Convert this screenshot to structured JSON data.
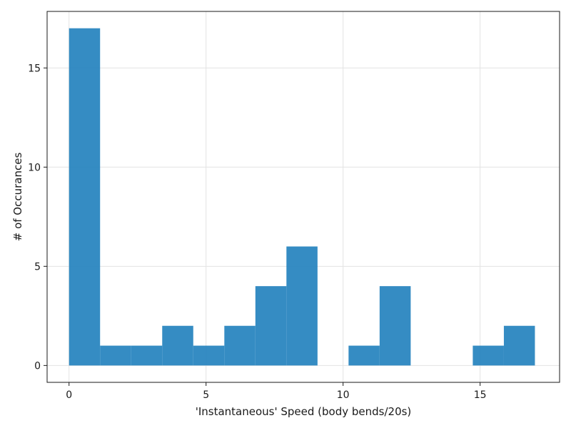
{
  "chart_data": {
    "type": "bar",
    "title": "",
    "xlabel": "'Instantaneous' Speed (body bends/20s)",
    "ylabel": "# of Occurances",
    "xlim": [
      -0.8,
      17.9
    ],
    "ylim": [
      -0.85,
      17.85
    ],
    "xticks": [
      0,
      5,
      10,
      15
    ],
    "yticks": [
      0,
      5,
      10,
      15
    ],
    "grid": true,
    "bar_color": "#1f7fbd",
    "bins": [
      {
        "x0": 0.0,
        "x1": 1.133,
        "count": 17
      },
      {
        "x0": 1.133,
        "x1": 2.267,
        "count": 1
      },
      {
        "x0": 2.267,
        "x1": 3.4,
        "count": 1
      },
      {
        "x0": 3.4,
        "x1": 4.533,
        "count": 2
      },
      {
        "x0": 4.533,
        "x1": 5.667,
        "count": 1
      },
      {
        "x0": 5.667,
        "x1": 6.8,
        "count": 2
      },
      {
        "x0": 6.8,
        "x1": 7.933,
        "count": 4
      },
      {
        "x0": 7.933,
        "x1": 9.067,
        "count": 6
      },
      {
        "x0": 9.067,
        "x1": 10.2,
        "count": 0
      },
      {
        "x0": 10.2,
        "x1": 11.333,
        "count": 1
      },
      {
        "x0": 11.333,
        "x1": 12.467,
        "count": 4
      },
      {
        "x0": 12.467,
        "x1": 13.6,
        "count": 0
      },
      {
        "x0": 13.6,
        "x1": 14.733,
        "count": 0
      },
      {
        "x0": 14.733,
        "x1": 15.867,
        "count": 1
      },
      {
        "x0": 15.867,
        "x1": 17.0,
        "count": 2
      }
    ]
  }
}
